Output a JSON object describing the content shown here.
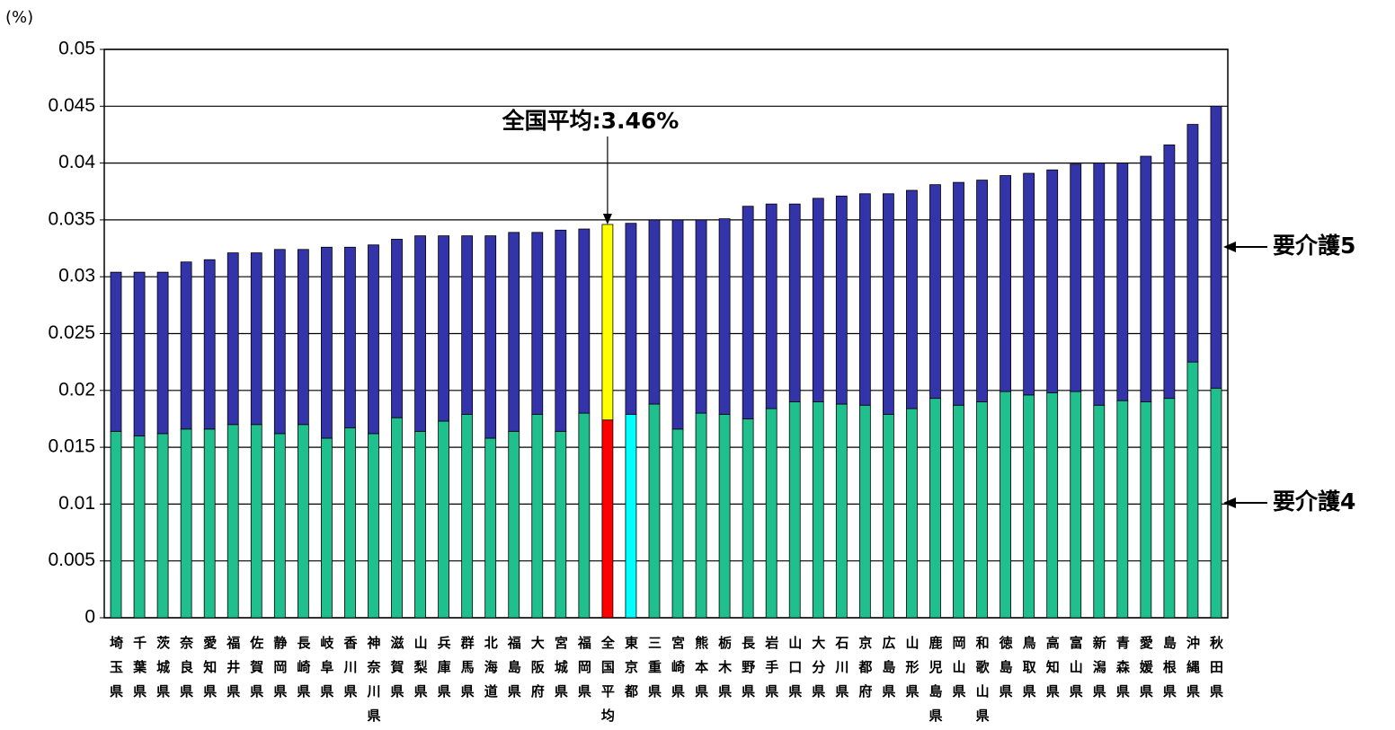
{
  "chart_data": {
    "type": "stacked_bar",
    "unit_label": "(%)",
    "annotation": "全国平均:3.46%",
    "annotation_category": "全国平均",
    "categories": [
      "埼玉県",
      "千葉県",
      "茨城県",
      "奈良県",
      "愛知県",
      "福井県",
      "佐賀県",
      "静岡県",
      "長崎県",
      "岐阜県",
      "香川県",
      "神奈川県",
      "滋賀県",
      "山梨県",
      "兵庫県",
      "群馬県",
      "北海道",
      "福島県",
      "大阪府",
      "宮城県",
      "福岡県",
      "全国平均",
      "東京都",
      "三重県",
      "宮崎県",
      "熊本県",
      "栃木県",
      "長野県",
      "岩手県",
      "山口県",
      "大分県",
      "石川県",
      "京都府",
      "広島県",
      "山形県",
      "鹿児島県",
      "岡山県",
      "和歌山県",
      "徳島県",
      "鳥取県",
      "高知県",
      "富山県",
      "新潟県",
      "青森県",
      "愛媛県",
      "島根県",
      "沖縄県",
      "秋田県"
    ],
    "series": [
      {
        "name": "要介護4",
        "color": "#1fc08e",
        "color_overrides": {
          "全国平均": "#ff0000",
          "東京都": "#00ffff"
        },
        "values": [
          0.0164,
          0.016,
          0.0162,
          0.0166,
          0.0166,
          0.017,
          0.017,
          0.0162,
          0.017,
          0.0158,
          0.0167,
          0.0162,
          0.0176,
          0.0164,
          0.0173,
          0.0179,
          0.0158,
          0.0164,
          0.0179,
          0.0164,
          0.018,
          0.0174,
          0.0179,
          0.0188,
          0.0166,
          0.018,
          0.0179,
          0.0175,
          0.0184,
          0.019,
          0.019,
          0.0188,
          0.0187,
          0.0179,
          0.0184,
          0.0193,
          0.0187,
          0.019,
          0.0199,
          0.0196,
          0.0198,
          0.0199,
          0.0187,
          0.0191,
          0.019,
          0.0193,
          0.0225,
          0.0202
        ]
      },
      {
        "name": "要介護5",
        "color": "#3333aa",
        "color_overrides": {
          "全国平均": "#ffff00"
        },
        "values": [
          0.014,
          0.0144,
          0.0142,
          0.0147,
          0.0149,
          0.0151,
          0.0151,
          0.0162,
          0.0154,
          0.0168,
          0.0159,
          0.0166,
          0.0157,
          0.0172,
          0.0163,
          0.0157,
          0.0178,
          0.0175,
          0.016,
          0.0177,
          0.0162,
          0.0172,
          0.0168,
          0.0162,
          0.0184,
          0.017,
          0.0172,
          0.0187,
          0.018,
          0.0174,
          0.0179,
          0.0183,
          0.0186,
          0.0194,
          0.0192,
          0.0188,
          0.0196,
          0.0195,
          0.019,
          0.0195,
          0.0196,
          0.02,
          0.0213,
          0.0209,
          0.0216,
          0.0223,
          0.0209,
          0.0248
        ]
      }
    ],
    "ylim": [
      0,
      0.05
    ],
    "yticks": [
      0,
      0.005,
      0.01,
      0.015,
      0.02,
      0.025,
      0.03,
      0.035,
      0.04,
      0.045,
      0.05
    ],
    "grid": true
  }
}
